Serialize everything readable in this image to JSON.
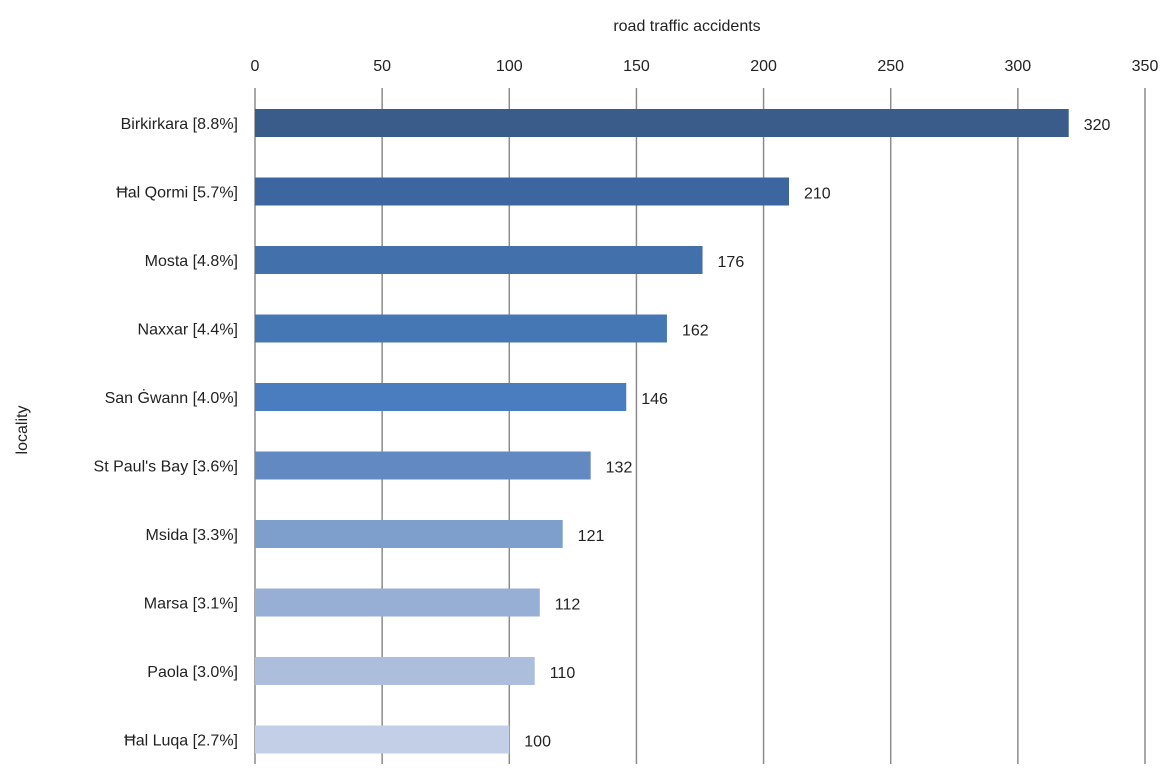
{
  "chart_data": {
    "type": "bar",
    "orientation": "horizontal",
    "title": "",
    "xlabel": "road traffic accidents",
    "xlabel_position": "top",
    "ylabel": "locality",
    "xlim": [
      0,
      350
    ],
    "xticks": [
      0,
      50,
      100,
      150,
      200,
      250,
      300,
      350
    ],
    "grid": true,
    "legend": "none",
    "categories": [
      "Birkirkara [8.8%]",
      "Ħal Qormi [5.7%]",
      "Mosta [4.8%]",
      "Naxxar [4.4%]",
      "San Ġwann [4.0%]",
      "St Paul's Bay [3.6%]",
      "Msida [3.3%]",
      "Marsa [3.1%]",
      "Paola [3.0%]",
      "Ħal Luqa [2.7%]"
    ],
    "values": [
      320,
      210,
      176,
      162,
      146,
      132,
      121,
      112,
      110,
      100
    ],
    "colors": [
      "#3a5c8a",
      "#3d66a0",
      "#4270aa",
      "#4677b5",
      "#4a7dbf",
      "#6389c2",
      "#7e9ecb",
      "#97aed5",
      "#adbddc",
      "#c3cfe6"
    ]
  }
}
